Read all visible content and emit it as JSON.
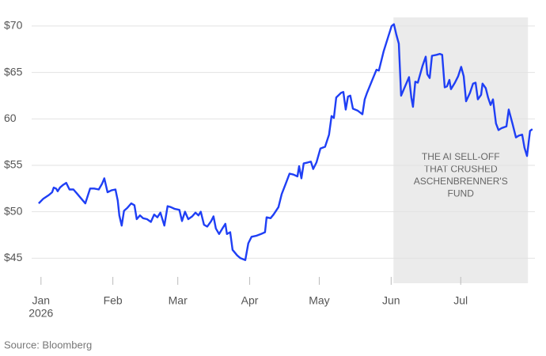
{
  "chart_data": {
    "type": "line",
    "xlim": [
      -3,
      213
    ],
    "xticks": [
      {
        "value": 0,
        "label": "Jan"
      },
      {
        "value": 31,
        "label": "Feb"
      },
      {
        "value": 59,
        "label": "Mar"
      },
      {
        "value": 90,
        "label": "Apr"
      },
      {
        "value": 120,
        "label": "May"
      },
      {
        "value": 151,
        "label": "Jun"
      },
      {
        "value": 181,
        "label": "Jul"
      }
    ],
    "x_year_label": "2026",
    "ylim": [
      42.3,
      71.1
    ],
    "yticks": [
      {
        "value": 45,
        "label": "$45"
      },
      {
        "value": 50,
        "label": "$50"
      },
      {
        "value": 55,
        "label": "$55"
      },
      {
        "value": 60,
        "label": "60"
      },
      {
        "value": 65,
        "label": "$65"
      },
      {
        "value": 70,
        "label": "$70"
      }
    ],
    "grid": true,
    "color": "#1f3ff5",
    "x": [
      -1.0,
      1.0,
      3.4,
      4.8,
      5.5,
      6.5,
      7.2,
      8.2,
      9.6,
      10.9,
      12.3,
      14.0,
      15.4,
      17.4,
      19.1,
      21.2,
      22.9,
      24.9,
      26.3,
      27.3,
      28.7,
      30.4,
      32.1,
      33.1,
      33.8,
      34.8,
      35.8,
      37.2,
      38.9,
      40.3,
      41.3,
      42.7,
      44.0,
      45.7,
      47.4,
      48.8,
      50.2,
      51.5,
      53.2,
      54.6,
      56.0,
      57.7,
      59.7,
      60.8,
      62.1,
      63.5,
      65.2,
      66.6,
      67.9,
      68.9,
      70.3,
      71.7,
      73.4,
      74.4,
      75.4,
      76.8,
      78.5,
      79.5,
      80.2,
      81.6,
      82.6,
      84.6,
      86.0,
      88.1,
      89.4,
      90.8,
      92.8,
      94.9,
      96.6,
      97.3,
      99.0,
      100.3,
      102.4,
      103.8,
      105.5,
      107.2,
      108.9,
      110.6,
      111.3,
      112.3,
      113.3,
      115.0,
      116.4,
      117.4,
      118.8,
      120.5,
      122.5,
      124.2,
      125.3,
      126.3,
      127.3,
      129.4,
      130.4,
      131.4,
      132.4,
      133.4,
      134.5,
      136.5,
      138.6,
      139.6,
      140.6,
      142.7,
      144.7,
      145.7,
      147.8,
      149.8,
      151.2,
      152.2,
      153.2,
      154.3,
      155.3,
      157.0,
      158.7,
      159.7,
      160.4,
      161.4,
      162.5,
      164.5,
      165.9,
      166.6,
      167.6,
      168.6,
      170.6,
      172.0,
      173.0,
      174.1,
      175.1,
      176.1,
      176.8,
      178.5,
      179.9,
      181.2,
      182.3,
      183.3,
      185.0,
      186.3,
      187.4,
      188.4,
      189.8,
      190.4,
      191.8,
      192.8,
      193.9,
      194.9,
      196.2,
      197.3,
      198.6,
      200.7,
      201.7,
      203.4,
      204.8,
      206.1,
      207.5,
      208.5,
      209.6,
      210.9,
      211.9
    ],
    "values": [
      50.9,
      51.4,
      51.8,
      52.1,
      52.6,
      52.5,
      52.2,
      52.6,
      52.9,
      53.1,
      52.4,
      52.4,
      52.0,
      51.4,
      50.9,
      52.5,
      52.5,
      52.4,
      53.0,
      53.6,
      52.1,
      52.3,
      52.4,
      51.2,
      49.6,
      48.5,
      50.1,
      50.4,
      50.9,
      50.7,
      49.2,
      49.6,
      49.3,
      49.2,
      48.9,
      49.7,
      49.4,
      49.9,
      48.5,
      50.6,
      50.5,
      50.3,
      50.2,
      49.0,
      50.0,
      49.2,
      49.5,
      49.9,
      49.6,
      50.0,
      48.6,
      48.4,
      49.0,
      49.5,
      48.2,
      47.6,
      48.3,
      48.7,
      47.6,
      47.8,
      45.9,
      45.3,
      45.0,
      44.8,
      46.6,
      47.3,
      47.4,
      47.6,
      47.8,
      49.4,
      49.3,
      49.7,
      50.5,
      51.9,
      53.0,
      54.1,
      54.0,
      53.8,
      54.9,
      53.6,
      55.2,
      55.3,
      55.4,
      54.6,
      55.3,
      56.8,
      57.0,
      58.3,
      60.3,
      60.1,
      62.3,
      62.8,
      62.9,
      61.0,
      62.4,
      62.5,
      61.1,
      60.9,
      60.5,
      62.1,
      62.8,
      64.1,
      65.3,
      65.2,
      67.3,
      68.9,
      70.0,
      70.2,
      69.1,
      68.1,
      62.5,
      63.5,
      64.5,
      62.3,
      61.3,
      64.0,
      63.9,
      65.7,
      66.7,
      64.8,
      64.4,
      66.8,
      66.9,
      67.0,
      66.9,
      63.4,
      63.5,
      64.2,
      63.2,
      63.9,
      64.6,
      65.6,
      64.6,
      61.9,
      62.8,
      63.8,
      63.9,
      62.1,
      62.6,
      63.8,
      63.3,
      62.3,
      61.5,
      62.1,
      59.5,
      58.8,
      59.0,
      59.2,
      61.0,
      59.4,
      58.0,
      58.2,
      58.3,
      56.9,
      56.0,
      58.7,
      58.9
    ],
    "shade": {
      "x0": 152,
      "x1": 210,
      "label_lines": [
        "THE AI SELL-OFF",
        "THAT CRUSHED",
        "ASCHENBRENNER'S",
        "FUND"
      ]
    },
    "source": "Source: Bloomberg"
  }
}
